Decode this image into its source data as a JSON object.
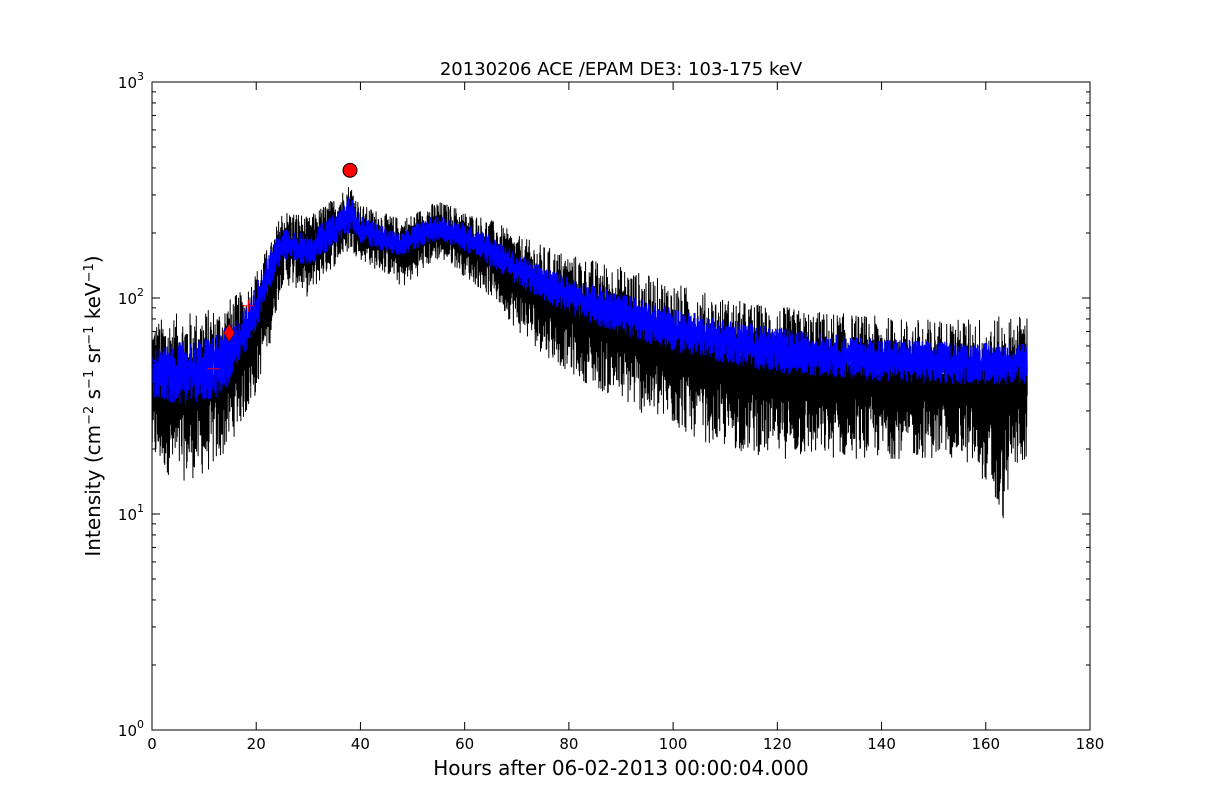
{
  "chart_data": {
    "type": "line",
    "title": "20130206 ACE /EPAM DE3: 103-175 keV",
    "xlabel": "Hours after 06-02-2013 00:00:04.000",
    "ylabel_parts": [
      "Intensity (cm",
      "−2",
      " s",
      "−1",
      " sr",
      "−1",
      " keV",
      "−1",
      ")"
    ],
    "xlim": [
      0,
      180
    ],
    "ylim": [
      1,
      1000
    ],
    "yscale": "log",
    "grid": false,
    "x_ticks": [
      0,
      20,
      40,
      60,
      80,
      100,
      120,
      140,
      160,
      180
    ],
    "y_ticks": [
      {
        "value": 1,
        "base": "10",
        "exp": "0"
      },
      {
        "value": 10,
        "base": "10",
        "exp": "1"
      },
      {
        "value": 100,
        "base": "10",
        "exp": "2"
      },
      {
        "value": 1000,
        "base": "10",
        "exp": "3"
      }
    ],
    "series": [
      {
        "color": "#000000",
        "style": "noisy envelope (upper/lower spread)",
        "x": [
          0,
          5,
          10,
          13,
          15,
          18,
          20,
          23,
          25,
          28,
          30,
          33,
          35,
          38,
          40,
          43,
          46,
          48,
          50,
          53,
          55,
          58,
          60,
          63,
          66,
          70,
          75,
          80,
          85,
          90,
          95,
          100,
          105,
          110,
          115,
          120,
          125,
          130,
          135,
          140,
          145,
          150,
          155,
          160,
          163,
          165,
          168
        ],
        "upper": [
          78,
          85,
          88,
          92,
          100,
          110,
          135,
          185,
          255,
          250,
          235,
          270,
          290,
          340,
          270,
          255,
          240,
          235,
          245,
          270,
          280,
          265,
          250,
          240,
          225,
          195,
          175,
          160,
          150,
          140,
          128,
          118,
          108,
          100,
          95,
          92,
          88,
          86,
          84,
          82,
          80,
          80,
          80,
          82,
          82,
          82,
          85
        ],
        "lower": [
          17,
          14,
          15,
          17,
          21,
          28,
          35,
          65,
          115,
          110,
          100,
          125,
          140,
          165,
          150,
          135,
          125,
          110,
          120,
          140,
          150,
          140,
          125,
          110,
          95,
          70,
          55,
          45,
          38,
          33,
          28,
          25,
          22,
          20,
          19,
          18,
          18,
          18,
          18,
          18,
          18,
          18,
          18,
          14,
          8,
          15,
          18
        ]
      },
      {
        "color": "#0000ff",
        "style": "smoothed band",
        "x": [
          0,
          5,
          10,
          13,
          15,
          18,
          20,
          23,
          25,
          28,
          30,
          33,
          35,
          38,
          40,
          43,
          46,
          48,
          50,
          53,
          55,
          58,
          60,
          63,
          66,
          70,
          75,
          80,
          85,
          90,
          95,
          100,
          105,
          110,
          115,
          120,
          125,
          130,
          135,
          140,
          145,
          150,
          155,
          160,
          163,
          165,
          168
        ],
        "upper": [
          58,
          62,
          65,
          70,
          75,
          90,
          115,
          170,
          215,
          205,
          195,
          225,
          245,
          300,
          240,
          225,
          205,
          200,
          215,
          235,
          240,
          230,
          220,
          210,
          185,
          160,
          140,
          125,
          115,
          105,
          97,
          90,
          84,
          80,
          76,
          73,
          70,
          68,
          66,
          65,
          64,
          63,
          62,
          62,
          62,
          62,
          63
        ],
        "lower": [
          34,
          32,
          33,
          35,
          40,
          55,
          70,
          115,
          150,
          145,
          140,
          160,
          175,
          200,
          180,
          170,
          160,
          155,
          165,
          180,
          185,
          175,
          165,
          150,
          135,
          115,
          98,
          85,
          75,
          68,
          62,
          57,
          53,
          50,
          47,
          45,
          44,
          43,
          42,
          41,
          41,
          40,
          40,
          40,
          40,
          40,
          40
        ]
      }
    ],
    "markers": [
      {
        "type": "plus",
        "color": "#ff0000",
        "x": 11.8,
        "y": 47
      },
      {
        "type": "plus",
        "color": "#ff0000",
        "x": 18.5,
        "y": 92
      },
      {
        "type": "diamond",
        "color": "#ff0000",
        "x": 14.8,
        "y": 69
      },
      {
        "type": "circle",
        "color": "#ff0000",
        "x": 38,
        "y": 390
      }
    ]
  }
}
